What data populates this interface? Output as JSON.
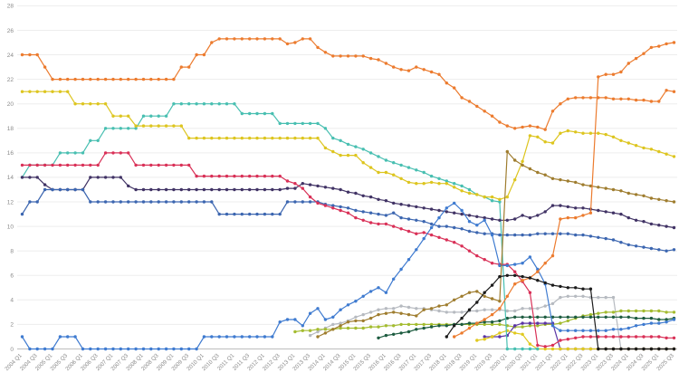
{
  "chart_data": {
    "type": "line",
    "title": "",
    "xlabel": "",
    "ylabel": "",
    "ylim": [
      0,
      28
    ],
    "y_tick_step": 2,
    "grid": true,
    "legend_position": "none",
    "x_tick_every": 2,
    "x_first_label": "2004 Q1",
    "x_last_label": "2025 Q3",
    "quarters_start_year": 2004,
    "quarters_end_year": 2025,
    "quarters_end_quarter": 3,
    "axis_label_color": "#8a8a8a",
    "grid_color": "#ededed",
    "baseline_color": "#bdbdbd",
    "series": [
      {
        "name": "silver",
        "color": "#b6bac0",
        "start": 38,
        "values": [
          1.1,
          1.4,
          1.7,
          2,
          2.1,
          2.3,
          2.6,
          2.8,
          3,
          3.2,
          3.3,
          3.3,
          3.5,
          3.4,
          3.3,
          3.3,
          3.2,
          3.1,
          3,
          3,
          3,
          3.1,
          3.1,
          3.2,
          3.2,
          3.2,
          3.1,
          3.1,
          3.3,
          3.3,
          3.3,
          3.5,
          3.7,
          4.2,
          4.3,
          4.3,
          4.3,
          4.2,
          4.2,
          4.2,
          4.2,
          0,
          0,
          0,
          0,
          0,
          0,
          0,
          0
        ]
      },
      {
        "name": "lime-green",
        "color": "#a4bc30",
        "start": 36,
        "values": [
          1.4,
          1.5,
          1.5,
          1.6,
          1.6,
          1.6,
          1.7,
          1.7,
          1.7,
          1.7,
          1.8,
          1.8,
          1.9,
          1.9,
          2,
          2,
          2,
          2,
          2,
          2,
          2,
          2,
          2,
          2,
          2,
          2,
          2,
          2,
          1.9,
          1.8,
          1.8,
          1.9,
          1.9,
          2,
          2,
          2.1,
          2.3,
          2.5,
          2.7,
          2.8,
          2.9,
          3,
          3,
          3.1,
          3.1,
          3.1,
          3.1,
          3.1,
          3.1,
          3,
          3
        ]
      },
      {
        "name": "dark-green",
        "color": "#1d5c40",
        "start": 47,
        "values": [
          0.9,
          1.1,
          1.2,
          1.3,
          1.4,
          1.6,
          1.7,
          1.8,
          1.9,
          1.9,
          2,
          2,
          2.1,
          2.1,
          2.2,
          2.2,
          2.3,
          2.5,
          2.6,
          2.6,
          2.6,
          2.6,
          2.6,
          2.6,
          2.6,
          2.6,
          2.6,
          2.6,
          2.6,
          2.6,
          2.6,
          2.6,
          2.6,
          2.6,
          2.5,
          2.5,
          2.5,
          2.4,
          2.4,
          2.5
        ]
      },
      {
        "name": "purple",
        "color": "#5b35a5",
        "start": 61,
        "values": [
          1,
          1,
          1,
          1.1,
          1.9,
          2.1,
          2.1,
          2.1,
          2.1,
          2.1,
          0,
          0,
          0,
          0,
          0,
          0,
          0,
          0,
          0,
          0,
          0,
          0,
          0,
          0,
          0,
          0
        ]
      },
      {
        "name": "small-gold",
        "color": "#e0c91f",
        "start": 60,
        "values": [
          0.7,
          0.8,
          1,
          1.3,
          1.5,
          1.3,
          1.2,
          0.4,
          0,
          0,
          0,
          0,
          0,
          0,
          0,
          0,
          0,
          0,
          0,
          0,
          0,
          0,
          0,
          0,
          0,
          0,
          0
        ]
      },
      {
        "name": "teal",
        "color": "#48bfb1",
        "start": 0,
        "values": [
          14,
          15,
          15,
          15,
          15,
          16,
          16,
          16,
          16,
          17,
          17,
          18,
          18,
          18,
          18,
          18,
          19,
          19,
          19,
          19,
          20,
          20,
          20,
          20,
          20,
          20,
          20,
          20,
          20,
          19.2,
          19.2,
          19.2,
          19.2,
          19.2,
          18.4,
          18.4,
          18.4,
          18.4,
          18.4,
          18.4,
          18,
          17.2,
          17,
          16.7,
          16.5,
          16.3,
          16,
          15.7,
          15.4,
          15.2,
          15,
          14.8,
          14.6,
          14.4,
          14.1,
          13.9,
          13.7,
          13.5,
          13.3,
          13,
          12.6,
          12.4,
          12.1,
          12,
          0,
          0,
          0,
          0,
          0
        ]
      },
      {
        "name": "gold",
        "color": "#ddc51f",
        "start": 0,
        "values": [
          21,
          21,
          21,
          21,
          21,
          21,
          21,
          20,
          20,
          20,
          20,
          20,
          19,
          19,
          19,
          18.2,
          18.2,
          18.2,
          18.2,
          18.2,
          18.2,
          18.2,
          17.2,
          17.2,
          17.2,
          17.2,
          17.2,
          17.2,
          17.2,
          17.2,
          17.2,
          17.2,
          17.2,
          17.2,
          17.2,
          17.2,
          17.2,
          17.2,
          17.2,
          17.2,
          16.4,
          16.1,
          15.8,
          15.8,
          15.8,
          15.2,
          14.8,
          14.4,
          14.4,
          14.2,
          13.9,
          13.6,
          13.5,
          13.5,
          13.6,
          13.5,
          13.5,
          13.2,
          12.9,
          12.7,
          12.6,
          12.4,
          12.4,
          12.2,
          12.4,
          13.8,
          15.3,
          17.4,
          17.3,
          16.9,
          16.8,
          17.6,
          17.8,
          17.7,
          17.6,
          17.6,
          17.6,
          17.5,
          17.3,
          17,
          16.8,
          16.6,
          16.4,
          16.3,
          16.1,
          15.9,
          15.7
        ]
      },
      {
        "name": "indigo",
        "color": "#413365",
        "start": 0,
        "values": [
          14,
          14,
          14,
          13.4,
          13,
          13,
          13,
          13,
          13,
          14,
          14,
          14,
          14,
          14,
          13.3,
          13,
          13,
          13,
          13,
          13,
          13,
          13,
          13,
          13,
          13,
          13,
          13,
          13,
          13,
          13,
          13,
          13,
          13,
          13,
          13,
          13.1,
          13.1,
          13.5,
          13.4,
          13.3,
          13.2,
          13.1,
          13,
          12.8,
          12.7,
          12.5,
          12.4,
          12.2,
          12.1,
          11.9,
          11.8,
          11.7,
          11.6,
          11.5,
          11.4,
          11.3,
          11.2,
          11.1,
          11,
          10.9,
          10.8,
          10.7,
          10.6,
          10.5,
          10.5,
          10.6,
          10.9,
          10.7,
          10.9,
          11.2,
          11.7,
          11.7,
          11.6,
          11.5,
          11.5,
          11.4,
          11.3,
          11.2,
          11.1,
          11,
          10.7,
          10.5,
          10.4,
          10.2,
          10.1,
          10,
          9.9
        ]
      },
      {
        "name": "royal-blue",
        "color": "#3c66b0",
        "start": 0,
        "values": [
          11,
          12,
          12,
          13,
          13,
          13,
          13,
          13,
          13,
          12,
          12,
          12,
          12,
          12,
          12,
          12,
          12,
          12,
          12,
          12,
          12,
          12,
          12,
          12,
          12,
          12,
          11,
          11,
          11,
          11,
          11,
          11,
          11,
          11,
          11,
          12,
          12,
          12,
          12,
          12,
          11.8,
          11.7,
          11.6,
          11.5,
          11.3,
          11.2,
          11.1,
          11,
          10.9,
          11.1,
          10.7,
          10.6,
          10.5,
          10.4,
          10.2,
          10,
          10,
          9.9,
          9.8,
          9.6,
          9.5,
          9.4,
          9.4,
          9.3,
          9.3,
          9.3,
          9.3,
          9.3,
          9.4,
          9.4,
          9.4,
          9.4,
          9.4,
          9.3,
          9.3,
          9.2,
          9.1,
          9,
          8.9,
          8.7,
          8.5,
          8.4,
          8.3,
          8.2,
          8.1,
          8,
          8.1
        ]
      },
      {
        "name": "crimson",
        "color": "#d93057",
        "start": 0,
        "values": [
          15,
          15,
          15,
          15,
          15,
          15,
          15,
          15,
          15,
          15,
          15,
          16,
          16,
          16,
          16,
          15,
          15,
          15,
          15,
          15,
          15,
          15,
          15,
          14.1,
          14.1,
          14.1,
          14.1,
          14.1,
          14.1,
          14.1,
          14.1,
          14.1,
          14.1,
          14.1,
          14.1,
          13.7,
          13.5,
          13.1,
          12.4,
          11.9,
          11.7,
          11.5,
          11.3,
          11.1,
          10.7,
          10.5,
          10.3,
          10.2,
          10.2,
          10,
          9.8,
          9.6,
          9.4,
          9.5,
          9.3,
          9.1,
          8.9,
          8.7,
          8.4,
          8,
          7.6,
          7.3,
          7,
          6.9,
          6.9,
          6.3,
          5.5,
          4.6,
          0.3,
          0.2,
          0.3,
          0.7,
          0.8,
          0.9,
          1,
          1,
          1,
          1,
          1,
          1,
          1,
          1,
          1,
          1,
          1,
          0.9,
          0.9
        ]
      },
      {
        "name": "bright-blue",
        "color": "#3f7bd0",
        "start": 0,
        "values": [
          1,
          0,
          0,
          0,
          0,
          1,
          1,
          1,
          0,
          0,
          0,
          0,
          0,
          0,
          0,
          0,
          0,
          0,
          0,
          0,
          0,
          0,
          0,
          0,
          1,
          1,
          1,
          1,
          1,
          1,
          1,
          1,
          1,
          1,
          2.2,
          2.4,
          2.4,
          1.9,
          2.9,
          3.3,
          2.4,
          2.6,
          3.2,
          3.6,
          3.9,
          4.3,
          4.7,
          5,
          4.6,
          5.7,
          6.5,
          7.3,
          8.1,
          9,
          9.9,
          10.7,
          11.5,
          11.9,
          11.3,
          10.4,
          10.1,
          10.5,
          9.3,
          6.8,
          6.8,
          6.9,
          7,
          7.5,
          6.5,
          5.3,
          1.9,
          1.5,
          1.5,
          1.5,
          1.5,
          1.5,
          1.5,
          1.5,
          1.6,
          1.6,
          1.7,
          1.9,
          2,
          2.1,
          2.1,
          2.2,
          2.4
        ]
      },
      {
        "name": "olive-brown",
        "color": "#9f7d2f",
        "start": 39,
        "values": [
          1,
          1.3,
          1.6,
          1.9,
          2.2,
          2.3,
          2.3,
          2.5,
          2.8,
          2.9,
          3,
          2.9,
          2.8,
          2.7,
          3.2,
          3.3,
          3.5,
          3.6,
          4,
          4.3,
          4.6,
          4.7,
          4.3,
          4.1,
          3.9,
          16.1,
          15.4,
          15,
          14.7,
          14.4,
          14.2,
          13.9,
          13.8,
          13.7,
          13.6,
          13.4,
          13.3,
          13.2,
          13.1,
          13,
          12.9,
          12.7,
          12.6,
          12.5,
          12.3,
          12.2,
          12.1,
          12
        ]
      },
      {
        "name": "orange-main",
        "color": "#ec7b2e",
        "start": 0,
        "values": [
          24,
          24,
          24,
          23,
          22,
          22,
          22,
          22,
          22,
          22,
          22,
          22,
          22,
          22,
          22,
          22,
          22,
          22,
          22,
          22,
          22,
          23,
          23,
          24,
          24,
          25,
          25.3,
          25.3,
          25.3,
          25.3,
          25.3,
          25.3,
          25.3,
          25.3,
          25.3,
          24.9,
          25,
          25.3,
          25.3,
          24.6,
          24.2,
          23.9,
          23.9,
          23.9,
          23.9,
          23.9,
          23.7,
          23.6,
          23.3,
          23,
          22.8,
          22.7,
          23,
          22.8,
          22.6,
          22.4,
          21.7,
          21.3,
          20.5,
          20.2,
          19.8,
          19.4,
          19,
          18.5,
          18.2,
          18,
          18.1,
          18.2,
          18.1,
          17.9,
          19.4,
          20,
          20.4,
          20.5,
          20.5,
          20.5,
          20.5,
          20.5,
          20.4,
          20.4,
          20.4,
          20.3,
          20.3,
          20.2,
          20.2,
          21.1,
          21
        ]
      },
      {
        "name": "orange-second",
        "color": "#ec7b2e",
        "start": 57,
        "values": [
          1,
          1.3,
          1.7,
          2.1,
          2.4,
          2.8,
          3.3,
          4.3,
          5.3,
          5.6,
          5.8,
          6.3,
          7,
          7.6,
          10.6,
          10.7,
          10.7,
          10.9,
          11.1,
          22.2,
          22.4,
          22.4,
          22.6,
          23.3,
          23.7,
          24.1,
          24.6,
          24.7,
          24.9,
          25
        ]
      },
      {
        "name": "black",
        "color": "#1b1b1b",
        "start": 56,
        "values": [
          1,
          1.9,
          2.5,
          3.2,
          3.8,
          4.6,
          5.2,
          5.9,
          6,
          6,
          5.9,
          5.8,
          5.6,
          5.4,
          5.2,
          5.1,
          5,
          5,
          4.9,
          4.9,
          0,
          0,
          0,
          0,
          0,
          0,
          0,
          0,
          0,
          0,
          0
        ]
      }
    ]
  }
}
